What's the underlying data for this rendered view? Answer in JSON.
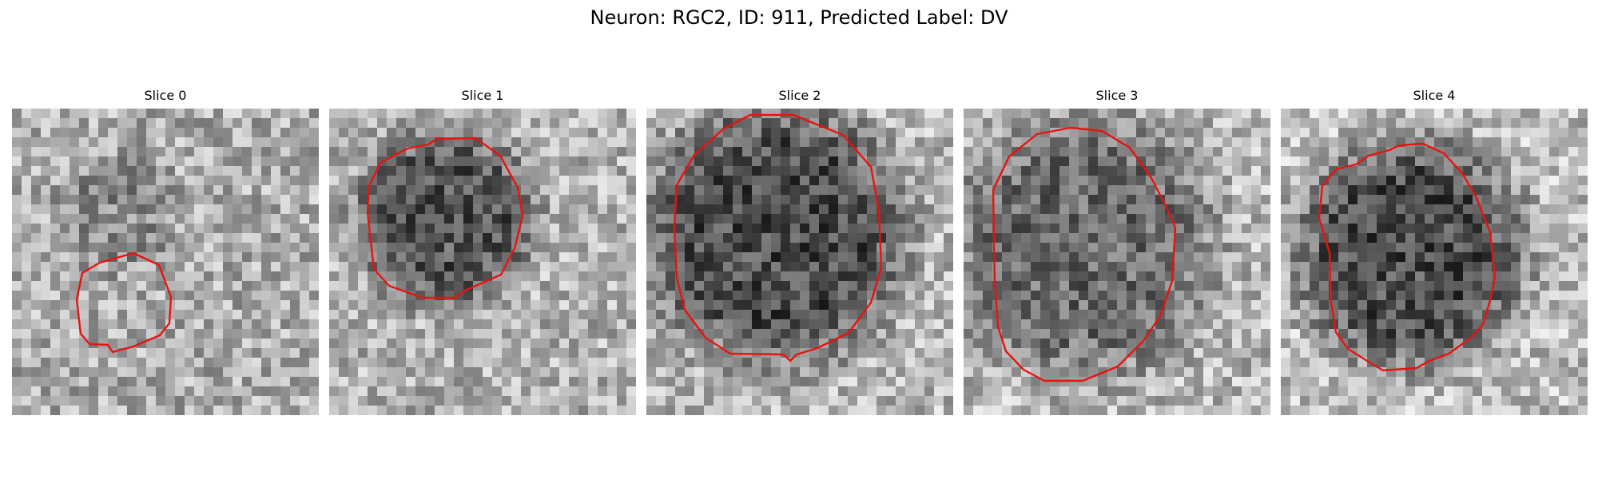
{
  "figure": {
    "title": "Neuron: RGC2, ID: 911, Predicted Label: DV"
  },
  "colors": {
    "contour": "#e8130f",
    "background": "#ffffff",
    "colormap": "grayscale"
  },
  "panels": [
    {
      "title": "Slice 0"
    },
    {
      "title": "Slice 1"
    },
    {
      "title": "Slice 2"
    },
    {
      "title": "Slice 3"
    },
    {
      "title": "Slice 4"
    }
  ]
}
